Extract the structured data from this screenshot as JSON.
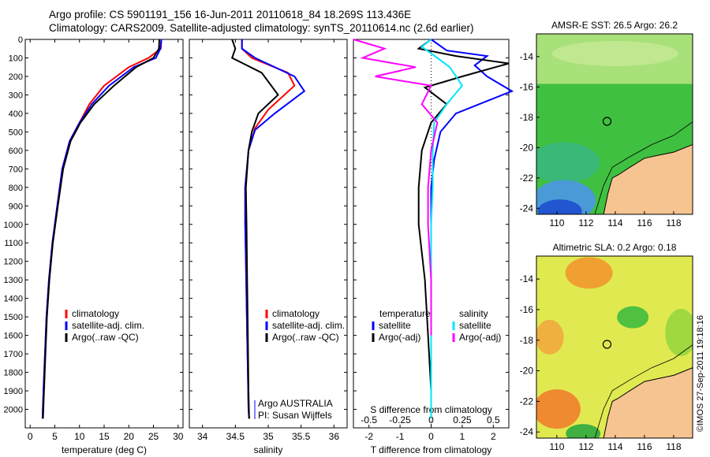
{
  "header": {
    "line1": "Argo profile: CS 5901191_156 16-Jun-2011 20110618_84 18.269S 113.436E",
    "line2": "Climatology: CARS2009. Satellite-adjusted climatology: synTS_20110614.nc (2.6d earlier)"
  },
  "credit": "©IMOS 27-Sep-2011 19:18:16",
  "colors": {
    "clim": "#ff0000",
    "sat": "#0000ff",
    "argo": "#000000",
    "sat_s": "#00e5ff",
    "argo_s": "#ff00ff",
    "land": "#f5c490"
  },
  "chart_data": [
    {
      "type": "line",
      "panel": "temperature",
      "xlabel": "temperature (deg C)",
      "ylabel": "",
      "xlim": [
        -1,
        31
      ],
      "ylim": [
        2100,
        0
      ],
      "xticks": [
        0,
        5,
        10,
        15,
        20,
        25,
        30
      ],
      "yticks": [
        0,
        100,
        200,
        300,
        400,
        500,
        600,
        700,
        800,
        900,
        1000,
        1100,
        1200,
        1300,
        1400,
        1500,
        1600,
        1700,
        1800,
        1900,
        2000
      ],
      "legend": [
        "climatology",
        "satellite-adj. clim.",
        "Argo(..raw -QC)"
      ],
      "series": [
        {
          "name": "climatology",
          "color": "red",
          "x": [
            26.6,
            26.5,
            24,
            20,
            15,
            12,
            10,
            8,
            6.5,
            5.5,
            4.5,
            3.8,
            3.3,
            3,
            2.7,
            2.5
          ],
          "y": [
            0,
            50,
            100,
            150,
            250,
            350,
            450,
            550,
            700,
            900,
            1100,
            1300,
            1500,
            1700,
            1900,
            2050
          ]
        },
        {
          "name": "satellite-adj. clim.",
          "color": "blue",
          "x": [
            26.6,
            26.4,
            25.5,
            21,
            16,
            12.5,
            10,
            8,
            6.5,
            5.5,
            4.5,
            3.8,
            3.3,
            3,
            2.7,
            2.5
          ],
          "y": [
            0,
            50,
            100,
            150,
            250,
            350,
            450,
            550,
            700,
            900,
            1100,
            1300,
            1500,
            1700,
            1900,
            2050
          ]
        },
        {
          "name": "Argo(..raw -QC)",
          "color": "black",
          "x": [
            26.2,
            26.1,
            25,
            21.5,
            17,
            13,
            10.2,
            8.2,
            6.7,
            5.6,
            4.6,
            3.9,
            3.4,
            3.1,
            2.8,
            2.6
          ],
          "y": [
            0,
            50,
            100,
            150,
            250,
            350,
            450,
            550,
            700,
            900,
            1100,
            1300,
            1500,
            1700,
            1900,
            2050
          ]
        }
      ]
    },
    {
      "type": "line",
      "panel": "salinity",
      "xlabel": "salinity",
      "ylabel": "",
      "xlim": [
        33.8,
        36.2
      ],
      "ylim": [
        2100,
        0
      ],
      "xticks": [
        34,
        34.5,
        35,
        35.5,
        36
      ],
      "xtick_labels": [
        "34",
        "34.5",
        "35",
        "35.5",
        "36"
      ],
      "legend": [
        "climatology",
        "satellite-adj. clim.",
        "Argo(..raw -QC)"
      ],
      "annotation": [
        "Argo AUSTRALIA",
        "PI: Susan Wijffels"
      ],
      "series": [
        {
          "name": "climatology",
          "color": "red",
          "x": [
            34.6,
            34.6,
            34.75,
            35.3,
            35.4,
            35.0,
            34.8,
            34.7,
            34.65,
            34.65,
            34.66,
            34.67,
            34.68,
            34.69,
            34.7,
            34.71
          ],
          "y": [
            0,
            50,
            100,
            180,
            250,
            380,
            480,
            600,
            800,
            1000,
            1200,
            1400,
            1600,
            1800,
            2000,
            2050
          ]
        },
        {
          "name": "satellite-adj. clim.",
          "color": "blue",
          "x": [
            34.6,
            34.6,
            34.8,
            35.4,
            35.55,
            35.1,
            34.8,
            34.7,
            34.65,
            34.65,
            34.66,
            34.67,
            34.68,
            34.69,
            34.7,
            34.71
          ],
          "y": [
            0,
            50,
            100,
            200,
            280,
            400,
            490,
            600,
            800,
            1000,
            1200,
            1400,
            1600,
            1800,
            2000,
            2050
          ]
        },
        {
          "name": "Argo(..raw -QC)",
          "color": "black",
          "x": [
            34.45,
            34.5,
            34.45,
            34.9,
            35.15,
            34.85,
            34.75,
            34.7,
            34.66,
            34.67,
            34.68,
            34.69,
            34.7,
            34.71
          ],
          "y": [
            0,
            50,
            100,
            180,
            300,
            400,
            500,
            600,
            800,
            1000,
            1300,
            1600,
            1900,
            2050
          ]
        }
      ]
    },
    {
      "type": "line",
      "panel": "difference",
      "xlabel": "T difference from climatology",
      "xlabel_top": "S difference from climatology",
      "ylabel": "",
      "xlim": [
        -2.5,
        2.5
      ],
      "ylim": [
        2100,
        0
      ],
      "xticks": [
        -2,
        -1,
        0,
        1,
        2
      ],
      "xticks_top": [
        -0.5,
        -0.25,
        0,
        0.25,
        0.5
      ],
      "legend_titles": [
        "temperature",
        "salinity"
      ],
      "legend": [
        "satellite",
        "Argo(-adj)",
        "satellite",
        "Argo(-adj)"
      ],
      "series": [
        {
          "name": "temperature satellite",
          "color": "blue",
          "x": [
            0,
            0.5,
            1.8,
            1.4,
            1.8,
            2.6,
            0.8,
            0.3,
            0.1,
            0,
            0,
            0,
            0,
            0,
            0
          ],
          "y": [
            0,
            60,
            90,
            140,
            200,
            280,
            400,
            500,
            650,
            800,
            1100,
            1400,
            1700,
            2000,
            2050
          ]
        },
        {
          "name": "temperature Argo(-adj)",
          "color": "black",
          "x": [
            0,
            -0.4,
            0.8,
            2.5,
            1,
            -0.2,
            0.5,
            0,
            -0.3,
            -0.4,
            -0.4,
            -0.2,
            -0.1,
            0,
            0
          ],
          "y": [
            0,
            50,
            90,
            130,
            200,
            260,
            350,
            450,
            600,
            800,
            1000,
            1300,
            1600,
            1900,
            2050
          ]
        },
        {
          "name": "salinity satellite",
          "color": "cyan",
          "x": [
            0,
            -0.3,
            0.2,
            0.6,
            1.0,
            0.5,
            0.1,
            0.05,
            0.05,
            0,
            0,
            0,
            0,
            0
          ],
          "y": [
            0,
            40,
            100,
            150,
            250,
            350,
            450,
            600,
            800,
            1000,
            1300,
            1600,
            1900,
            2050
          ]
        },
        {
          "name": "salinity Argo(-adj)",
          "color": "magenta",
          "x": [
            -2.5,
            -1.5,
            -2.2,
            -0.5,
            -1.8,
            0,
            -0.3,
            0.2,
            0,
            -0.1,
            -0.1,
            0,
            0
          ],
          "y": [
            0,
            50,
            100,
            150,
            200,
            250,
            350,
            450,
            600,
            800,
            1000,
            1300,
            1600
          ]
        }
      ]
    },
    {
      "type": "heatmap",
      "panel": "map-sst",
      "title": "AMSR-E SST: 26.5 Argo: 26.2",
      "xticks": [
        110,
        112,
        114,
        116,
        118
      ],
      "yticks": [
        -14,
        -16,
        -18,
        -20,
        -22,
        -24
      ],
      "argo_position": [
        113.436,
        -18.269
      ]
    },
    {
      "type": "heatmap",
      "panel": "map-sla",
      "title": "Altimetric SLA: 0.2 Argo: 0.18",
      "xticks": [
        110,
        112,
        114,
        116,
        118
      ],
      "yticks": [
        -14,
        -16,
        -18,
        -20,
        -22,
        -24
      ],
      "argo_position": [
        113.436,
        -18.269
      ]
    }
  ]
}
